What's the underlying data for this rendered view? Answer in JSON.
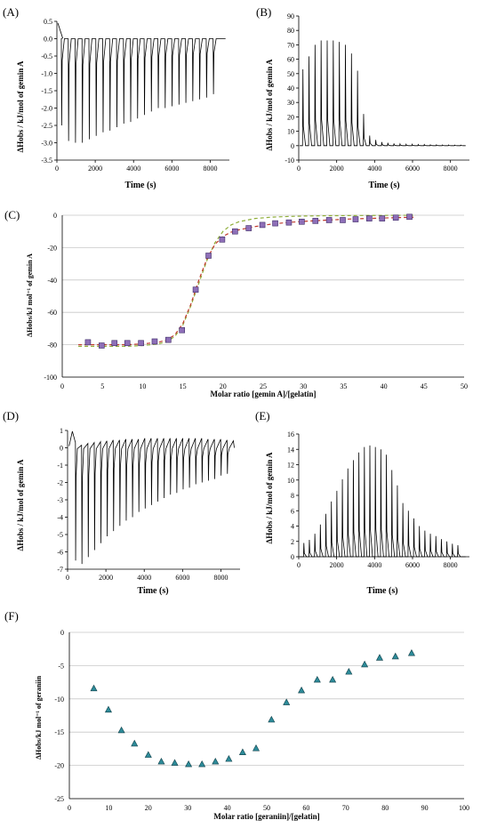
{
  "chart_data": [
    {
      "panel": "(A)",
      "type": "line",
      "xlabel": "Time (s)",
      "ylabel": "ΔHobs / kJ/mol of gemin A",
      "xlim": [
        0,
        9000
      ],
      "ylim": [
        -3.5,
        0.5
      ],
      "xticks": [
        0,
        2000,
        4000,
        6000,
        8000
      ],
      "yticks": [
        0.5,
        0.0,
        -0.5,
        -1.0,
        -1.5,
        -2.0,
        -2.5,
        -3.0,
        -3.5
      ],
      "baseline": 0,
      "initial_peak": 0.45,
      "injection_times": [
        230,
        590,
        950,
        1310,
        1670,
        2030,
        2390,
        2750,
        3110,
        3470,
        3830,
        4190,
        4550,
        4910,
        5270,
        5630,
        5990,
        6350,
        6710,
        7070,
        7430,
        7790,
        8150
      ],
      "peak_values": [
        -2.5,
        -2.95,
        -3.0,
        -3.0,
        -2.9,
        -2.8,
        -2.7,
        -2.65,
        -2.55,
        -2.45,
        -2.4,
        -2.3,
        -2.2,
        -2.1,
        -2.0,
        -2.0,
        -1.95,
        -1.9,
        -1.85,
        -1.8,
        -1.75,
        -1.7,
        -1.6
      ]
    },
    {
      "panel": "(B)",
      "type": "line",
      "xlabel": "Time (s)",
      "ylabel": "ΔHobs / kJ/mol of gemin A",
      "xlim": [
        0,
        9000
      ],
      "ylim": [
        -10,
        90
      ],
      "xticks": [
        0,
        2000,
        4000,
        6000,
        8000
      ],
      "yticks": [
        90,
        80,
        70,
        60,
        50,
        40,
        30,
        20,
        10,
        0,
        -10
      ],
      "baseline": 0,
      "injection_times": [
        200,
        520,
        840,
        1160,
        1480,
        1800,
        2120,
        2440,
        2760,
        3080,
        3400,
        3720,
        4040,
        4360,
        4680,
        5000,
        5320,
        5640,
        5960,
        6280,
        6600,
        6920,
        7240,
        7560,
        7880,
        8200,
        8520
      ],
      "peak_values": [
        53,
        62,
        70,
        73,
        73,
        73,
        72,
        70,
        64,
        52,
        22,
        7,
        4,
        2.5,
        2,
        1.5,
        1.2,
        1,
        1,
        0.8,
        0.8,
        0.6,
        0.6,
        0.5,
        0.5,
        0.4,
        0.4
      ]
    },
    {
      "panel": "(C)",
      "type": "scatter",
      "xlabel": "Molar ratio [gemin A]/[gelatin]",
      "ylabel": "ΔHobs/kJ mol⁻¹ of gemin A",
      "xlim": [
        0,
        50
      ],
      "ylim": [
        -100,
        0
      ],
      "xticks": [
        0,
        5,
        10,
        15,
        20,
        25,
        30,
        35,
        40,
        45,
        50
      ],
      "yticks": [
        0,
        -20,
        -40,
        -60,
        -80,
        -100
      ],
      "grid": true,
      "x": [
        3.2,
        4.9,
        6.5,
        8.1,
        9.8,
        11.5,
        13.2,
        14.9,
        16.6,
        18.2,
        19.9,
        21.5,
        23.2,
        24.9,
        26.5,
        28.2,
        29.8,
        31.5,
        33.2,
        34.9,
        36.5,
        38.2,
        39.8,
        41.5,
        43.2
      ],
      "y": [
        -78.5,
        -80.5,
        -79,
        -79,
        -79,
        -78,
        -77,
        -71,
        -46,
        -25,
        -15,
        -10,
        -8,
        -6,
        -5,
        -4.5,
        -4,
        -3.5,
        -3,
        -3,
        -2.5,
        -2,
        -2,
        -1.5,
        -1
      ],
      "fit_curves": [
        {
          "color": "#8fae3a",
          "style": "dashed",
          "x": [
            2,
            4,
            6,
            8,
            10,
            12,
            13,
            14,
            15,
            16,
            17,
            18,
            19,
            20,
            21,
            22,
            24,
            26,
            28,
            30,
            33,
            36,
            40,
            44
          ],
          "y": [
            -81,
            -81,
            -81,
            -81,
            -80.5,
            -79.5,
            -78,
            -75,
            -68,
            -56,
            -42,
            -28,
            -17,
            -10,
            -6,
            -4,
            -2,
            -1.2,
            -0.8,
            -0.5,
            -0.3,
            -0.2,
            -0.1,
            0
          ]
        },
        {
          "color": "#c0392b",
          "style": "dashed",
          "x": [
            2,
            4,
            6,
            8,
            10,
            12,
            13,
            14,
            15,
            16,
            17,
            18,
            19,
            20,
            21,
            22,
            24,
            26,
            28,
            30,
            33,
            36,
            40,
            44
          ],
          "y": [
            -80,
            -80,
            -80,
            -80,
            -79.5,
            -78.5,
            -77,
            -74,
            -67,
            -55,
            -40,
            -27,
            -18,
            -13,
            -10.5,
            -9,
            -7,
            -5.5,
            -4.5,
            -3.8,
            -3,
            -2.3,
            -1.7,
            -1.2
          ]
        }
      ]
    },
    {
      "panel": "(D)",
      "type": "line",
      "xlabel": "Time (s)",
      "ylabel": "ΔHobs / kJ/mol of gemin A",
      "xlim": [
        0,
        9000
      ],
      "ylim": [
        -7,
        1
      ],
      "xticks": [
        0,
        2000,
        4000,
        6000,
        8000
      ],
      "yticks": [
        1,
        0,
        -1,
        -2,
        -3,
        -4,
        -5,
        -6,
        -7
      ],
      "initial_peak": 0.95,
      "injection_times": [
        420,
        750,
        1080,
        1410,
        1740,
        2070,
        2400,
        2730,
        3060,
        3390,
        3720,
        4050,
        4380,
        4710,
        5040,
        5370,
        5700,
        6030,
        6360,
        6690,
        7020,
        7350,
        7680,
        8010,
        8340
      ],
      "peak_values": [
        -6.5,
        -6.7,
        -6.3,
        -5.9,
        -5.5,
        -5.1,
        -4.8,
        -4.5,
        -4.2,
        -4.0,
        -3.7,
        -3.5,
        -3.3,
        -3.1,
        -2.9,
        -2.7,
        -2.6,
        -2.4,
        -2.3,
        -2.1,
        -2.0,
        -1.9,
        -1.8,
        -1.6,
        -1.5
      ],
      "recovery_values": [
        0.15,
        0.25,
        0.3,
        0.35,
        0.4,
        0.45,
        0.45,
        0.5,
        0.5,
        0.5,
        0.55,
        0.55,
        0.55,
        0.55,
        0.55,
        0.55,
        0.55,
        0.55,
        0.55,
        0.55,
        0.5,
        0.5,
        0.5,
        0.45,
        0.4
      ]
    },
    {
      "panel": "(E)",
      "type": "line",
      "xlabel": "Time (s)",
      "ylabel": "ΔHobs / kJ/mol of gemin A",
      "xlim": [
        0,
        9000
      ],
      "ylim": [
        0,
        16
      ],
      "xticks": [
        0,
        2000,
        4000,
        6000,
        8000
      ],
      "yticks": [
        16,
        14,
        12,
        10,
        8,
        6,
        4,
        2,
        0
      ],
      "baseline": 0,
      "injection_times": [
        250,
        540,
        830,
        1120,
        1410,
        1700,
        1990,
        2280,
        2570,
        2860,
        3150,
        3440,
        3730,
        4020,
        4310,
        4600,
        4890,
        5180,
        5470,
        5760,
        6050,
        6340,
        6630,
        6920,
        7210,
        7500,
        7790,
        8080,
        8370
      ],
      "peak_values": [
        1.8,
        2.2,
        3.0,
        4.2,
        5.6,
        7.2,
        8.6,
        10.1,
        11.5,
        12.6,
        13.6,
        14.3,
        14.5,
        14.3,
        14.0,
        13.3,
        11.3,
        9.3,
        7.0,
        6.0,
        5.0,
        4.0,
        3.4,
        3.0,
        2.7,
        2.3,
        2.0,
        1.7,
        1.5
      ]
    },
    {
      "panel": "(F)",
      "type": "scatter",
      "xlabel": "Molar ratio [geraniin]/[gelatin]",
      "ylabel": "ΔHobs/kJ mol⁻¹ of geraniin",
      "xlim": [
        0,
        100
      ],
      "ylim": [
        -25,
        0
      ],
      "xticks": [
        0,
        10,
        20,
        30,
        40,
        50,
        60,
        70,
        80,
        90,
        100
      ],
      "yticks": [
        0,
        -5,
        -10,
        -15,
        -20,
        -25
      ],
      "grid": true,
      "x": [
        6.2,
        9.9,
        13.2,
        16.5,
        20,
        23.3,
        26.7,
        30.2,
        33.6,
        37,
        40.4,
        43.9,
        47.3,
        51.2,
        55,
        58.8,
        62.8,
        66.7,
        70.8,
        74.8,
        78.6,
        82.6,
        86.7
      ],
      "y": [
        -8.4,
        -11.6,
        -14.7,
        -16.7,
        -18.4,
        -19.4,
        -19.6,
        -19.8,
        -19.8,
        -19.4,
        -19.0,
        -18.0,
        -17.4,
        -13.1,
        -10.5,
        -8.7,
        -7.1,
        -7.1,
        -5.9,
        -4.8,
        -3.8,
        -3.6,
        -3.1
      ]
    }
  ],
  "colors": {
    "axis": "#000000",
    "grid": "#c8c8c8",
    "trace": "#000000",
    "marker_c_fill": "#8e6fb8",
    "marker_c_stroke": "#3d2a66",
    "marker_f_fill": "#2e8c9a",
    "marker_f_stroke": "#0f3f48"
  }
}
